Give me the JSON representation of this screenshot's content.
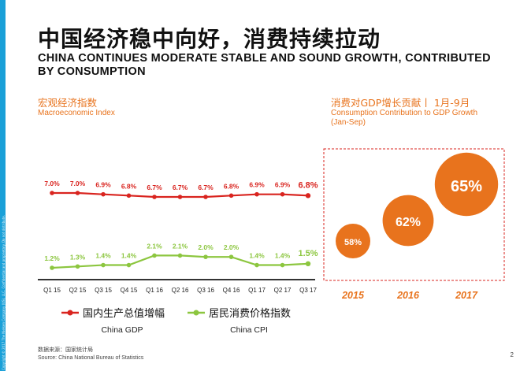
{
  "page": {
    "title_cn": "中国经济稳中向好，消费持续拉动",
    "title_en": "CHINA CONTINUES MODERATE STABLE AND SOUND GROWTH, CONTRIBUTED BY CONSUMPTION",
    "copyright": "Copyright © 2017 The Nielsen Company (US), LLC. Confidential and proprietary. Do not distribute.",
    "source_cn": "数据来源：国家统计局",
    "source_en": "Source: China National Bureau of Statistics",
    "page_number": "2"
  },
  "colors": {
    "gdp": "#d9241f",
    "cpi": "#8cc63f",
    "accent": "#e8731d",
    "sidebar": "#1aa0d8"
  },
  "left_chart": {
    "title_cn": "宏观经济指数",
    "title_en": "Macroeconomic Index"
  },
  "right_chart": {
    "title_cn": "消费对GDP增长贡献丨 1月-9月",
    "title_en_line1": "Consumption Contribution to GDP Growth",
    "title_en_line2": "(Jan-Sep)"
  },
  "chart_data": [
    {
      "type": "line",
      "title": "宏观经济指数 / Macroeconomic Index",
      "categories": [
        "Q1 15",
        "Q2 15",
        "Q3 15",
        "Q4 15",
        "Q1 16",
        "Q2 16",
        "Q3 16",
        "Q4 16",
        "Q1 17",
        "Q2 17",
        "Q3 17"
      ],
      "series": [
        {
          "name": "国内生产总值增幅",
          "name_en": "China GDP",
          "values": [
            7.0,
            7.0,
            6.9,
            6.8,
            6.7,
            6.7,
            6.7,
            6.8,
            6.9,
            6.9,
            6.8
          ],
          "labels": [
            "7.0%",
            "7.0%",
            "6.9%",
            "6.8%",
            "6.7%",
            "6.7%",
            "6.7%",
            "6.8%",
            "6.9%",
            "6.9%",
            "6.8%"
          ]
        },
        {
          "name": "居民消费价格指数",
          "name_en": "China CPI",
          "values": [
            1.2,
            1.3,
            1.4,
            1.4,
            2.1,
            2.1,
            2.0,
            2.0,
            1.4,
            1.4,
            1.5
          ],
          "labels": [
            "1.2%",
            "1.3%",
            "1.4%",
            "1.4%",
            "2.1%",
            "2.1%",
            "2.0%",
            "2.0%",
            "1.4%",
            "1.4%",
            "1.5%"
          ]
        }
      ]
    },
    {
      "type": "bubble",
      "title": "消费对GDP增长贡献 1月-9月 / Consumption Contribution to GDP Growth (Jan-Sep)",
      "categories": [
        "2015",
        "2016",
        "2017"
      ],
      "values": [
        58,
        62,
        65
      ],
      "labels": [
        "58%",
        "62%",
        "65%"
      ]
    }
  ]
}
